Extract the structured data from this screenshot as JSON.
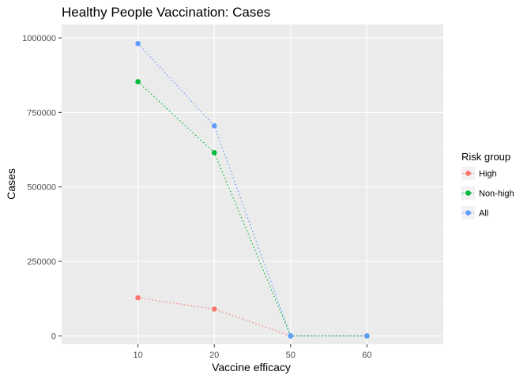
{
  "chart_data": {
    "type": "line",
    "title": "Healthy People Vaccination: Cases",
    "xlabel": "Vaccine efficacy",
    "ylabel": "Cases",
    "categories": [
      "10",
      "20",
      "50",
      "60"
    ],
    "y_ticks": [
      0,
      250000,
      500000,
      750000,
      1000000
    ],
    "y_tick_labels": [
      "0",
      "250000",
      "500000",
      "750000",
      "1000000"
    ],
    "ylim": [
      -28000,
      1045000
    ],
    "grid": true,
    "line_style": "dotted",
    "legend": {
      "title": "Risk group",
      "placement": "right"
    },
    "series": [
      {
        "name": "High",
        "color": "#F8766D",
        "values": [
          128000,
          90000,
          0,
          0
        ]
      },
      {
        "name": "Non-high",
        "color": "#00BA38",
        "values": [
          853000,
          615000,
          0,
          0
        ]
      },
      {
        "name": "All",
        "color": "#619CFF",
        "values": [
          981000,
          705000,
          0,
          0
        ]
      }
    ]
  }
}
